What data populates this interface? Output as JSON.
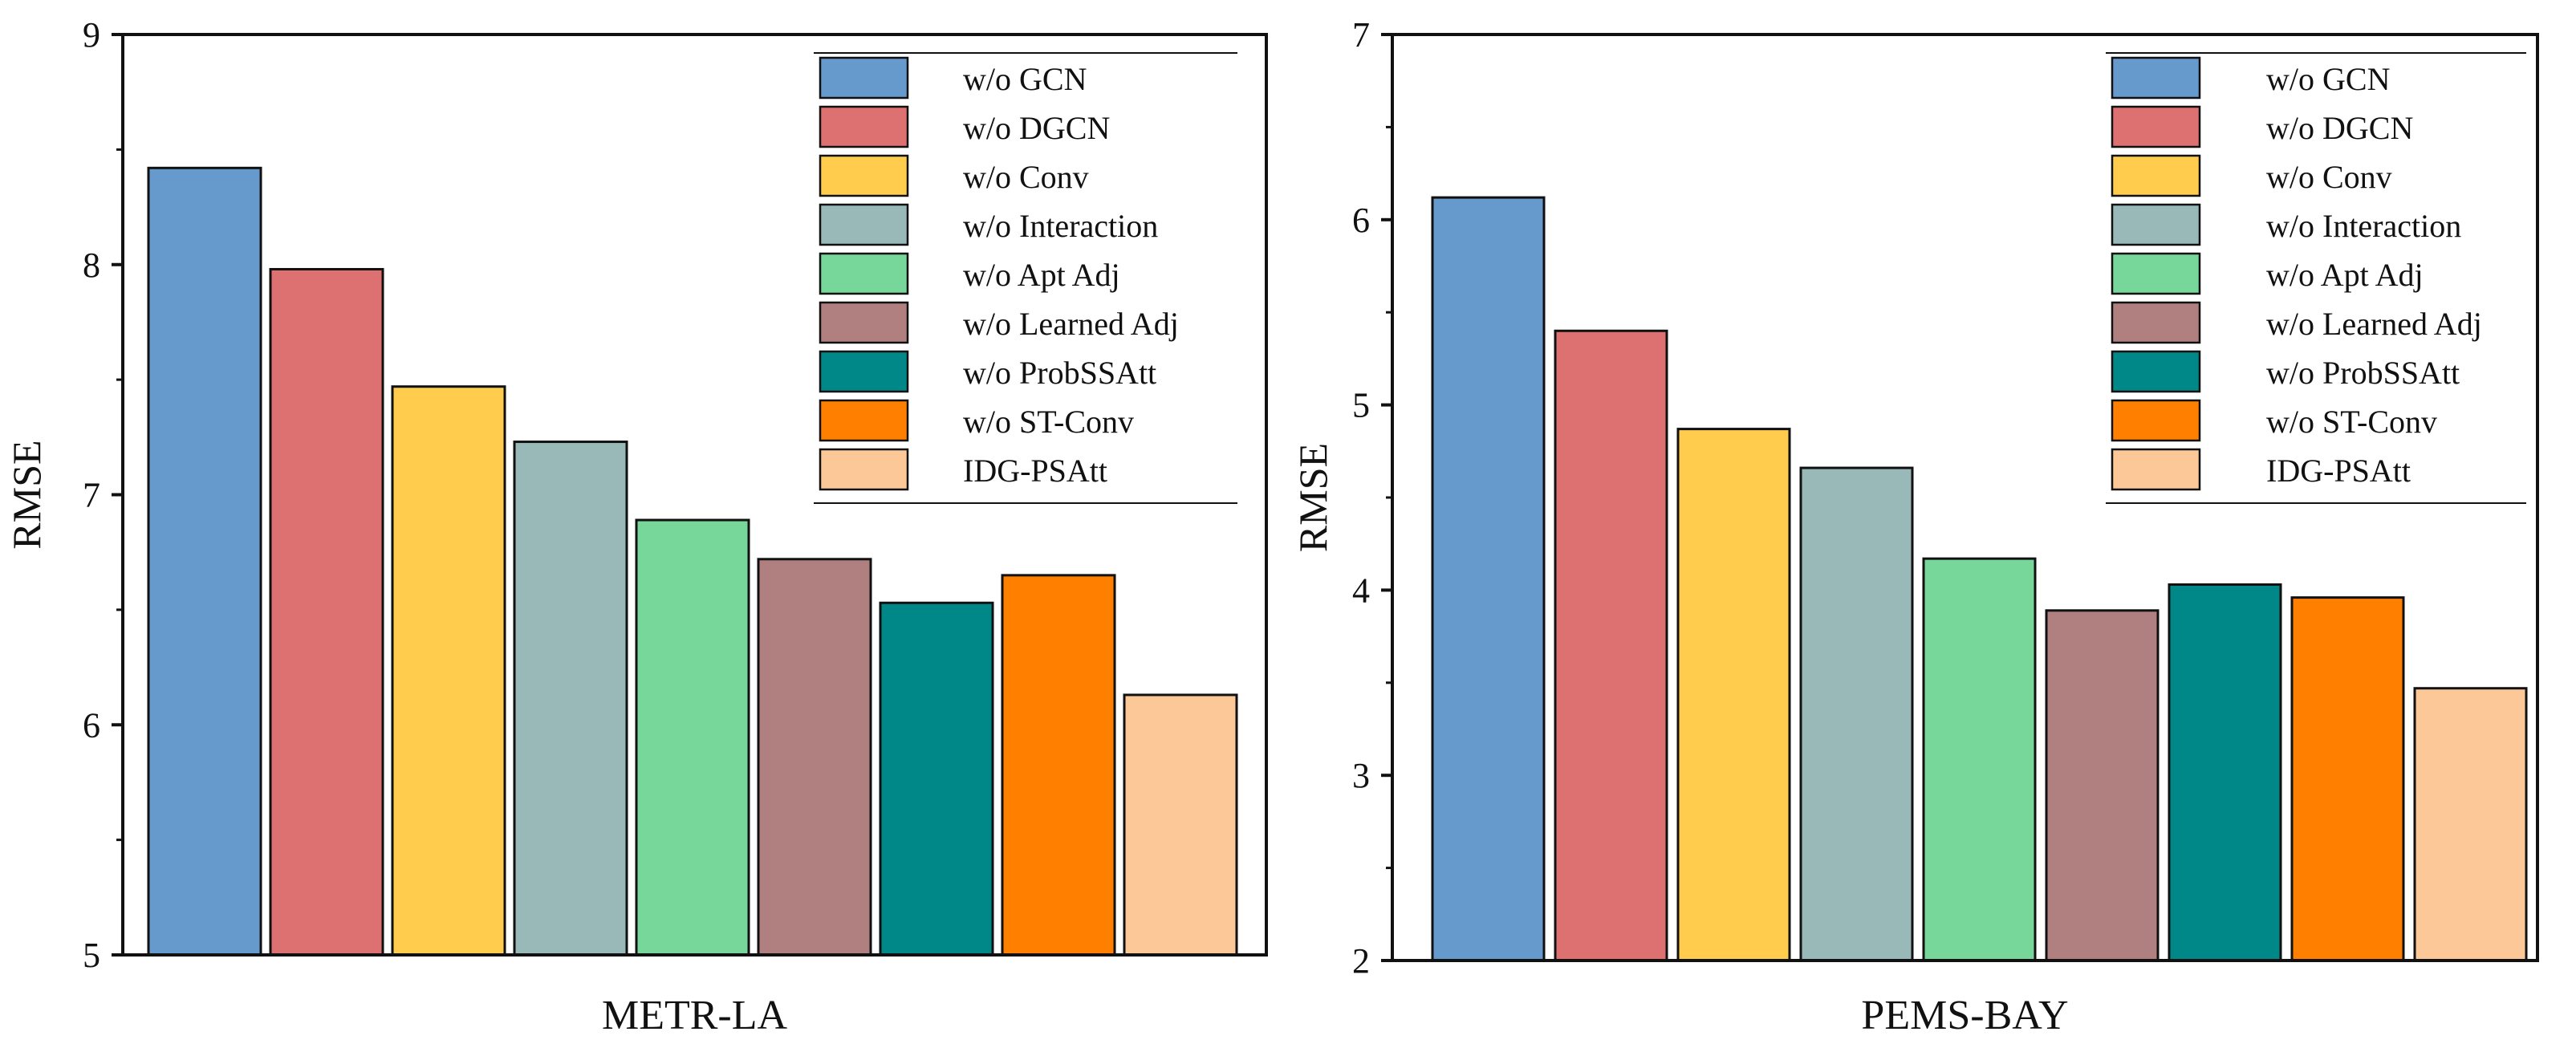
{
  "chart_data": [
    {
      "type": "bar",
      "title": "",
      "xlabel": "METR-LA",
      "ylabel": "RMSE",
      "ylim": [
        5,
        9
      ],
      "yticks": [
        "5",
        "6",
        "7",
        "8",
        "9"
      ],
      "grid": false,
      "legend_position": "top-right",
      "categories": [
        "w/o GCN",
        "w/o DGCN",
        "w/o Conv",
        "w/o Interaction",
        "w/o Apt Adj",
        "w/o Learned Adj",
        "w/o ProbSSAtt",
        "w/o ST-Conv",
        "IDG-PSAtt"
      ],
      "colors": [
        "#6699cc",
        "#dd7070",
        "#ffcc4d",
        "#99b8b8",
        "#77d699",
        "#b08080",
        "#008888",
        "#ff8000",
        "#fcc898"
      ],
      "values": [
        8.42,
        7.98,
        7.47,
        7.23,
        6.89,
        6.72,
        6.53,
        6.65,
        6.13
      ]
    },
    {
      "type": "bar",
      "title": "",
      "xlabel": "PEMS-BAY",
      "ylabel": "RMSE",
      "ylim": [
        2,
        7
      ],
      "yticks": [
        "2",
        "3",
        "4",
        "5",
        "6",
        "7"
      ],
      "grid": false,
      "legend_position": "top-right",
      "categories": [
        "w/o GCN",
        "w/o DGCN",
        "w/o Conv",
        "w/o Interaction",
        "w/o Apt Adj",
        "w/o Learned Adj",
        "w/o ProbSSAtt",
        "w/o ST-Conv",
        "IDG-PSAtt"
      ],
      "colors": [
        "#6699cc",
        "#dd7070",
        "#ffcc4d",
        "#99b8b8",
        "#77d699",
        "#b08080",
        "#008888",
        "#ff8000",
        "#fcc898"
      ],
      "values": [
        6.12,
        5.4,
        4.87,
        4.66,
        4.17,
        3.89,
        4.03,
        3.96,
        3.47
      ]
    }
  ]
}
